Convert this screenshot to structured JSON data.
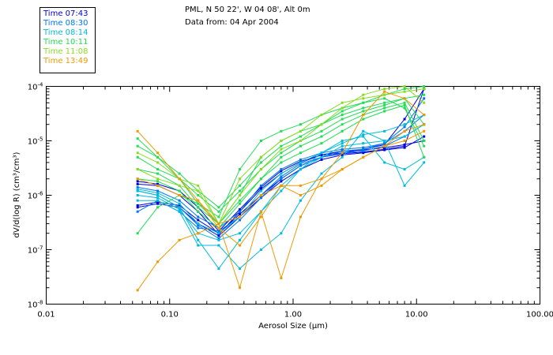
{
  "chart_data": {
    "type": "line",
    "title_line1": "PML, N 50 22', W 04 08', Alt 0m",
    "title_line2": "Data from: 04 Apr 2004",
    "xlabel": "Aerosol Size (µm)",
    "ylabel": "dV/d(log R) (cm³/cm³)",
    "x_scale": "log",
    "y_scale": "log",
    "xlim": [
      0.01,
      100
    ],
    "ylim": [
      1e-08,
      0.0001
    ],
    "x_ticks": [
      {
        "value": 0.01,
        "label": "0.01"
      },
      {
        "value": 0.1,
        "label": "0.10"
      },
      {
        "value": 1,
        "label": "1.00"
      },
      {
        "value": 10,
        "label": "10.00"
      },
      {
        "value": 100,
        "label": "100.00"
      }
    ],
    "y_ticks": [
      {
        "value": 1e-08,
        "base": "10",
        "exp": "-8"
      },
      {
        "value": 1e-07,
        "base": "10",
        "exp": "-7"
      },
      {
        "value": 1e-06,
        "base": "10",
        "exp": "-6"
      },
      {
        "value": 1e-05,
        "base": "10",
        "exp": "-5"
      },
      {
        "value": 0.0001,
        "base": "10",
        "exp": "-4"
      }
    ],
    "x": [
      0.055,
      0.08,
      0.12,
      0.17,
      0.25,
      0.37,
      0.55,
      0.8,
      1.15,
      1.7,
      2.5,
      3.7,
      5.5,
      8,
      11.5
    ],
    "series": [
      {
        "name": "Time 07:43",
        "color": "#0000dd",
        "lines": [
          [
            1.6e-06,
            1.5e-06,
            1e-06,
            5e-07,
            1.9e-07,
            5e-07,
            1.3e-06,
            2.5e-06,
            4e-06,
            5.5e-06,
            6.5e-06,
            6.8e-06,
            7.5e-06,
            8.5e-06,
            1e-05
          ],
          [
            6.5e-07,
            7.5e-07,
            6.5e-07,
            3.5e-07,
            2e-07,
            4.5e-07,
            1e-06,
            2e-06,
            3.5e-06,
            5e-06,
            5.8e-06,
            6.2e-06,
            7e-06,
            8e-06,
            9e-05
          ],
          [
            6e-07,
            7e-07,
            6e-07,
            3e-07,
            1.8e-07,
            4e-07,
            9e-07,
            1.8e-06,
            3e-06,
            4.5e-06,
            5.5e-06,
            6e-06,
            6.8e-06,
            7.5e-06,
            1.2e-05
          ],
          [
            1.8e-06,
            1.6e-06,
            1.2e-06,
            6e-07,
            2.2e-07,
            5.5e-07,
            1.4e-06,
            2.8e-06,
            4.2e-06,
            5.5e-06,
            6e-06,
            7e-06,
            8.5e-06,
            2.5e-05,
            9e-05
          ]
        ]
      },
      {
        "name": "Time 08:30",
        "color": "#0077ee",
        "lines": [
          [
            1.4e-06,
            1.2e-06,
            8e-07,
            4e-07,
            2.5e-07,
            5e-07,
            1.5e-06,
            3e-06,
            4.5e-06,
            6e-06,
            7e-06,
            7.5e-06,
            9e-06,
            1.5e-05,
            3e-05
          ],
          [
            5e-07,
            8e-07,
            5e-07,
            2.5e-07,
            2.2e-07,
            4e-07,
            1e-06,
            2.2e-06,
            3.8e-06,
            5e-06,
            6e-06,
            6.5e-06,
            8e-06,
            1.2e-05,
            2e-05
          ],
          [
            1.2e-06,
            1e-06,
            6e-07,
            2.8e-07,
            1.6e-07,
            3.5e-07,
            9e-07,
            2e-06,
            3.5e-06,
            5e-06,
            6.5e-06,
            7e-06,
            9e-06,
            1.8e-05,
            6e-05
          ]
        ]
      },
      {
        "name": "Time 08:14",
        "color": "#00bbdd",
        "lines": [
          [
            1.2e-06,
            1e-06,
            6e-07,
            1.5e-07,
            4.5e-08,
            1.5e-07,
            5e-07,
            1.2e-06,
            3e-06,
            5e-06,
            8e-06,
            9e-06,
            1e-05,
            1.2e-05,
            2e-05
          ],
          [
            8e-07,
            8e-07,
            5e-07,
            1.2e-07,
            1.2e-07,
            4.5e-08,
            1e-07,
            2e-07,
            8e-07,
            2.5e-06,
            5e-06,
            1.5e-05,
            1e-05,
            1.5e-06,
            4e-06
          ],
          [
            1e-06,
            9e-07,
            5.5e-07,
            2e-07,
            1.5e-07,
            2e-07,
            5e-07,
            1.5e-06,
            3e-06,
            6e-06,
            1e-05,
            1.2e-05,
            4e-06,
            3e-06,
            5e-06
          ],
          [
            1.3e-06,
            1.1e-06,
            7e-07,
            3e-07,
            2e-07,
            4e-07,
            1.2e-06,
            2.5e-06,
            4e-06,
            6e-06,
            9e-06,
            1.3e-05,
            1.5e-05,
            2e-05,
            3e-05
          ]
        ]
      },
      {
        "name": "Time 10:11",
        "color": "#22dd55",
        "lines": [
          [
            1.1e-05,
            5e-06,
            2e-06,
            7e-07,
            4e-07,
            3e-06,
            1e-05,
            1.5e-05,
            2e-05,
            3e-05,
            4e-05,
            5e-05,
            6e-05,
            4e-05,
            8e-06
          ],
          [
            3e-06,
            2.5e-06,
            1.5e-06,
            6e-07,
            3e-07,
            1e-06,
            5e-06,
            1e-05,
            1.5e-05,
            2e-05,
            3e-05,
            4e-05,
            5e-05,
            6e-05,
            7e-05
          ],
          [
            2e-07,
            6e-07,
            1e-06,
            7e-07,
            3e-07,
            8e-07,
            2e-06,
            5e-06,
            8e-06,
            1.2e-05,
            2e-05,
            3e-05,
            4e-05,
            5e-05,
            1e-05
          ],
          [
            8e-06,
            5e-06,
            2.5e-06,
            1.2e-06,
            6e-07,
            1.5e-06,
            4e-06,
            8e-06,
            1.2e-05,
            2e-05,
            3.5e-05,
            5e-05,
            7e-05,
            9e-05,
            0.0001
          ],
          [
            5e-06,
            3e-06,
            2e-06,
            1e-06,
            5e-07,
            1.2e-06,
            3e-06,
            6e-06,
            1e-05,
            1.5e-05,
            2.5e-05,
            3.5e-05,
            4.5e-05,
            6e-05,
            2e-05
          ],
          [
            2e-06,
            1.8e-06,
            1.2e-06,
            5e-07,
            2.5e-07,
            7e-07,
            2e-06,
            4e-06,
            6e-06,
            9e-06,
            1.5e-05,
            2.5e-05,
            3.5e-05,
            4.5e-05,
            5e-06
          ]
        ]
      },
      {
        "name": "Time 11:08",
        "color": "#88dd22",
        "lines": [
          [
            6e-06,
            4e-06,
            2e-06,
            1.5e-06,
            3e-07,
            2e-06,
            5e-06,
            1e-05,
            1.5e-05,
            3e-05,
            5e-05,
            6e-05,
            7e-05,
            8e-05,
            9e-05
          ],
          [
            3e-06,
            2e-06,
            1.5e-06,
            1.2e-06,
            3e-07,
            1e-06,
            3e-06,
            7e-06,
            1e-05,
            2e-05,
            4e-05,
            7e-05,
            9e-05,
            0.0001,
            5e-05
          ]
        ]
      },
      {
        "name": "Time 13:49",
        "color": "#ee9900",
        "lines": [
          [
            1.5e-05,
            6e-06,
            2e-06,
            8e-07,
            2.5e-07,
            1.2e-07,
            4e-07,
            1.5e-06,
            1.5e-06,
            2e-06,
            3e-06,
            5e-06,
            8e-06,
            1.5e-05,
            2e-05
          ],
          [
            1.8e-08,
            6e-08,
            1.5e-07,
            2e-07,
            3e-07,
            2e-08,
            5e-07,
            3e-08,
            4e-07,
            2e-06,
            6e-06,
            3e-05,
            8e-05,
            6e-05,
            3e-05
          ],
          [
            2e-06,
            1.5e-06,
            1e-06,
            8e-07,
            3e-07,
            4e-07,
            1e-06,
            1.5e-06,
            1e-06,
            1.5e-06,
            3e-06,
            5e-06,
            8e-06,
            1e-05,
            1.5e-05
          ]
        ]
      }
    ]
  }
}
